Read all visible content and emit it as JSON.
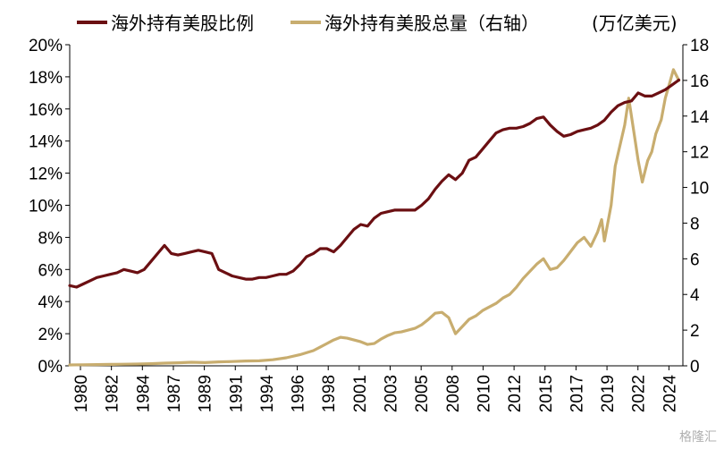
{
  "chart_data": {
    "type": "line",
    "unit_label": "(万亿美元)",
    "watermark": "格隆汇",
    "x_ticks": [
      "1980",
      "1982",
      "1984",
      "1987",
      "1989",
      "1991",
      "1994",
      "1996",
      "1998",
      "2001",
      "2003",
      "2005",
      "2008",
      "2010",
      "2012",
      "2015",
      "2017",
      "2019",
      "2022",
      "2024"
    ],
    "y_left": {
      "ticks": [
        "0%",
        "2%",
        "4%",
        "6%",
        "8%",
        "10%",
        "12%",
        "14%",
        "16%",
        "18%",
        "20%"
      ],
      "range": [
        0,
        20
      ]
    },
    "y_right": {
      "ticks": [
        "0",
        "2",
        "4",
        "6",
        "8",
        "10",
        "12",
        "14",
        "16",
        "18"
      ],
      "range": [
        0,
        18
      ]
    },
    "x_range": [
      1980,
      2025.3
    ],
    "series": [
      {
        "name": "海外持有美股比例",
        "axis": "left",
        "color": "#6b0f12",
        "x": [
          1980,
          1980.5,
          1981,
          1981.5,
          1982,
          1982.5,
          1983,
          1983.5,
          1984,
          1984.5,
          1985,
          1985.5,
          1986,
          1986.5,
          1987,
          1987.5,
          1988,
          1988.5,
          1989,
          1989.5,
          1990,
          1990.5,
          1991,
          1991.5,
          1992,
          1992.5,
          1993,
          1993.5,
          1994,
          1994.5,
          1995,
          1995.5,
          1996,
          1996.5,
          1997,
          1997.5,
          1998,
          1998.5,
          1999,
          1999.5,
          2000,
          2000.5,
          2001,
          2001.5,
          2002,
          2002.5,
          2003,
          2003.5,
          2004,
          2004.5,
          2005,
          2005.5,
          2006,
          2006.5,
          2007,
          2007.5,
          2008,
          2008.5,
          2009,
          2009.5,
          2010,
          2010.5,
          2011,
          2011.5,
          2012,
          2012.5,
          2013,
          2013.5,
          2014,
          2014.5,
          2015,
          2015.5,
          2016,
          2016.5,
          2017,
          2017.5,
          2018,
          2018.5,
          2019,
          2019.5,
          2020,
          2020.5,
          2021,
          2021.5,
          2022,
          2022.5,
          2023,
          2023.5,
          2024,
          2024.5,
          2025
        ],
        "values": [
          5.0,
          4.9,
          5.1,
          5.3,
          5.5,
          5.6,
          5.7,
          5.8,
          6.0,
          5.9,
          5.8,
          6.0,
          6.5,
          7.0,
          7.5,
          7.0,
          6.9,
          7.0,
          7.1,
          7.2,
          7.1,
          7.0,
          6.0,
          5.8,
          5.6,
          5.5,
          5.4,
          5.4,
          5.5,
          5.5,
          5.6,
          5.7,
          5.7,
          5.9,
          6.3,
          6.8,
          7.0,
          7.3,
          7.3,
          7.1,
          7.5,
          8.0,
          8.5,
          8.8,
          8.7,
          9.2,
          9.5,
          9.6,
          9.7,
          9.7,
          9.7,
          9.7,
          10.0,
          10.4,
          11.0,
          11.5,
          11.9,
          11.6,
          12.0,
          12.8,
          13.0,
          13.5,
          14.0,
          14.5,
          14.7,
          14.8,
          14.8,
          14.9,
          15.1,
          15.4,
          15.5,
          15.0,
          14.6,
          14.3,
          14.4,
          14.6,
          14.7,
          14.8,
          15.0,
          15.3,
          15.8,
          16.2,
          16.4,
          16.5,
          17.0,
          16.8,
          16.8,
          17.0,
          17.2,
          17.5,
          17.8
        ]
      },
      {
        "name": "海外持有美股总量（右轴）",
        "axis": "right",
        "color": "#c8ad6f",
        "x": [
          1980,
          1981,
          1982,
          1983,
          1984,
          1985,
          1986,
          1987,
          1988,
          1989,
          1990,
          1991,
          1992,
          1993,
          1994,
          1995,
          1996,
          1997,
          1998,
          1998.5,
          1999,
          1999.5,
          2000,
          2000.5,
          2001,
          2001.5,
          2002,
          2002.5,
          2003,
          2003.5,
          2004,
          2004.5,
          2005,
          2005.5,
          2006,
          2006.5,
          2007,
          2007.5,
          2008,
          2008.5,
          2009,
          2009.5,
          2010,
          2010.5,
          2011,
          2011.5,
          2012,
          2012.5,
          2013,
          2013.5,
          2014,
          2014.5,
          2015,
          2015.5,
          2016,
          2016.5,
          2017,
          2017.5,
          2018,
          2018.5,
          2019,
          2019.3,
          2019.5,
          2020,
          2020.3,
          2020.7,
          2021,
          2021.3,
          2021.7,
          2022,
          2022.3,
          2022.7,
          2023,
          2023.3,
          2023.7,
          2024,
          2024.3,
          2024.6,
          2025
        ],
        "values": [
          0.05,
          0.06,
          0.07,
          0.08,
          0.09,
          0.1,
          0.12,
          0.15,
          0.17,
          0.2,
          0.18,
          0.22,
          0.24,
          0.27,
          0.28,
          0.34,
          0.45,
          0.62,
          0.85,
          1.05,
          1.25,
          1.45,
          1.6,
          1.55,
          1.45,
          1.35,
          1.2,
          1.25,
          1.5,
          1.7,
          1.85,
          1.9,
          2.0,
          2.1,
          2.3,
          2.6,
          2.95,
          3.0,
          2.7,
          1.8,
          2.2,
          2.6,
          2.8,
          3.1,
          3.3,
          3.5,
          3.8,
          4.0,
          4.4,
          4.9,
          5.3,
          5.7,
          6.0,
          5.4,
          5.5,
          5.9,
          6.4,
          6.9,
          7.2,
          6.7,
          7.5,
          8.2,
          7.0,
          9.0,
          11.2,
          12.5,
          13.5,
          15.0,
          13.0,
          11.5,
          10.3,
          11.5,
          12.0,
          13.0,
          13.8,
          15.0,
          15.8,
          16.6,
          16.0
        ]
      }
    ]
  }
}
